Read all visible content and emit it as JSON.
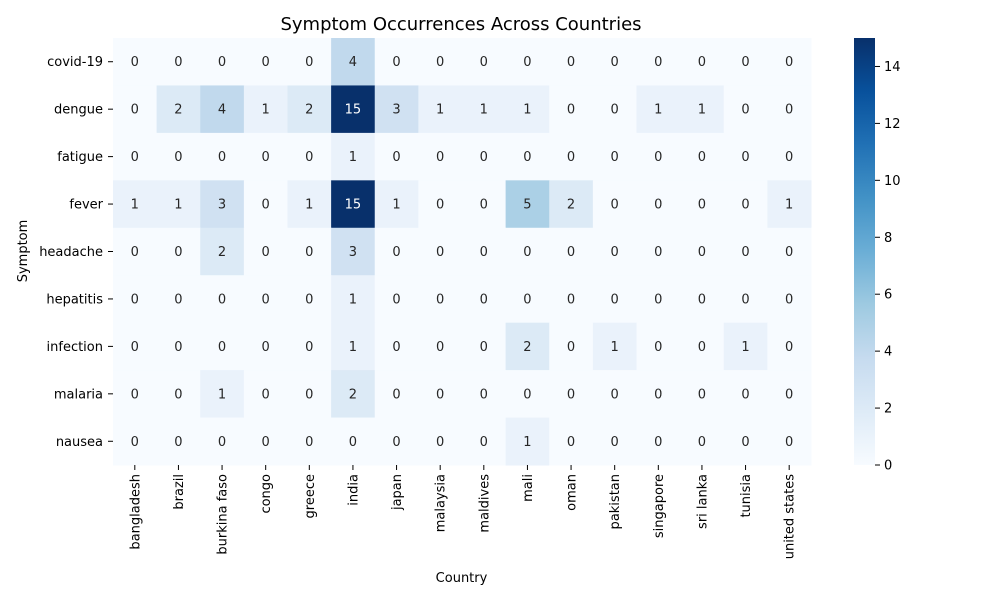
{
  "chart_data": {
    "type": "heatmap",
    "title": "Symptom Occurrences Across Countries",
    "xlabel": "Country",
    "ylabel": "Symptom",
    "x_categories": [
      "bangladesh",
      "brazil",
      "burkina faso",
      "congo",
      "greece",
      "india",
      "japan",
      "malaysia",
      "maldives",
      "mali",
      "oman",
      "pakistan",
      "singapore",
      "sri lanka",
      "tunisia",
      "united states"
    ],
    "y_categories": [
      "covid-19",
      "dengue",
      "fatigue",
      "fever",
      "headache",
      "hepatitis",
      "infection",
      "malaria",
      "nausea"
    ],
    "values": [
      [
        0,
        0,
        0,
        0,
        0,
        4,
        0,
        0,
        0,
        0,
        0,
        0,
        0,
        0,
        0,
        0
      ],
      [
        0,
        2,
        4,
        1,
        2,
        15,
        3,
        1,
        1,
        1,
        0,
        0,
        1,
        1,
        0,
        0
      ],
      [
        0,
        0,
        0,
        0,
        0,
        1,
        0,
        0,
        0,
        0,
        0,
        0,
        0,
        0,
        0,
        0
      ],
      [
        1,
        1,
        3,
        0,
        1,
        15,
        1,
        0,
        0,
        5,
        2,
        0,
        0,
        0,
        0,
        1
      ],
      [
        0,
        0,
        2,
        0,
        0,
        3,
        0,
        0,
        0,
        0,
        0,
        0,
        0,
        0,
        0,
        0
      ],
      [
        0,
        0,
        0,
        0,
        0,
        1,
        0,
        0,
        0,
        0,
        0,
        0,
        0,
        0,
        0,
        0
      ],
      [
        0,
        0,
        0,
        0,
        0,
        1,
        0,
        0,
        0,
        2,
        0,
        1,
        0,
        0,
        1,
        0
      ],
      [
        0,
        0,
        1,
        0,
        0,
        2,
        0,
        0,
        0,
        0,
        0,
        0,
        0,
        0,
        0,
        0
      ],
      [
        0,
        0,
        0,
        0,
        0,
        0,
        0,
        0,
        0,
        1,
        0,
        0,
        0,
        0,
        0,
        0
      ]
    ],
    "colorscale": "Blues",
    "color_low": "#f7fbff",
    "color_high": "#08306b",
    "vmin": 0,
    "vmax": 15,
    "colorbar_ticks": [
      0,
      2,
      4,
      6,
      8,
      10,
      12,
      14
    ],
    "annotations": true,
    "grid": false
  }
}
